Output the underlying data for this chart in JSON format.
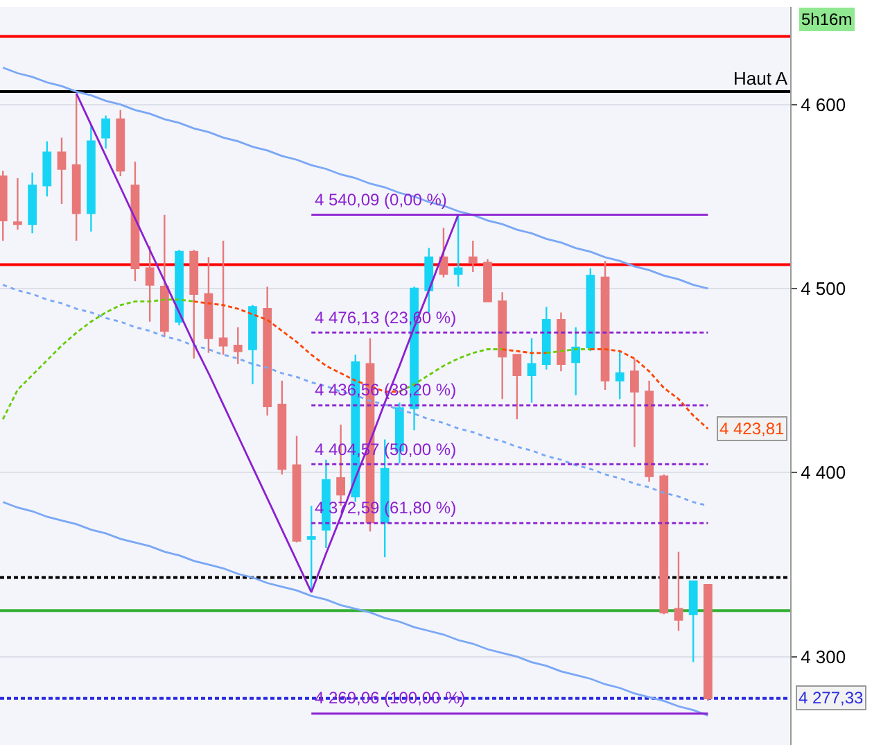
{
  "chart_data": {
    "type": "candlestick",
    "categories": [
      null,
      null,
      null,
      null,
      null,
      null,
      null,
      null,
      null,
      null,
      null,
      null,
      null,
      null,
      null,
      null,
      null,
      null,
      null,
      null,
      null,
      null,
      null,
      null,
      null,
      null,
      null,
      null,
      null,
      null,
      null,
      null,
      null,
      null,
      null,
      null,
      null,
      null,
      null,
      null,
      null,
      null,
      null,
      null,
      null,
      null,
      null,
      null,
      null
    ],
    "ylim": [
      4252,
      4653
    ],
    "yticks": [
      {
        "value": 4600,
        "label": "4 600"
      },
      {
        "value": 4500,
        "label": "4 500"
      },
      {
        "value": 4400,
        "label": "4 400"
      },
      {
        "value": 4300,
        "label": "4 300"
      }
    ],
    "tick_labels": "y",
    "grid": "y",
    "series": [
      {
        "type": "line",
        "color": "#7aa7f5",
        "line_style": "solid",
        "values": [
          4620,
          4617,
          4615,
          4612,
          4610,
          4607,
          4605,
          4602,
          4600,
          4597,
          4595,
          4592,
          4590,
          4587,
          4585,
          4582,
          4580,
          4577,
          4575,
          4572,
          4570,
          4567,
          4565,
          4562,
          4560,
          4557,
          4555,
          4552,
          4550,
          4547,
          4545,
          4542,
          4540,
          4537,
          4535,
          4532,
          4530,
          4527,
          4525,
          4522,
          4520,
          4517,
          4515,
          4512,
          4510,
          4507,
          4505,
          4502,
          4500
        ]
      },
      {
        "type": "line",
        "color": "#7aa7f5",
        "line_style": "solid",
        "values": [
          4384,
          4381,
          4379,
          4376,
          4374,
          4372,
          4369,
          4367,
          4364,
          4362,
          4360,
          4357,
          4355,
          4352,
          4350,
          4348,
          4345,
          4343,
          4340,
          4338,
          4336,
          4333,
          4331,
          4328,
          4326,
          4324,
          4321,
          4319,
          4316,
          4314,
          4312,
          4309,
          4307,
          4304,
          4302,
          4300,
          4297,
          4295,
          4292,
          4290,
          4288,
          4285,
          4283,
          4280,
          4278,
          4276,
          4273,
          4271,
          4268
        ]
      },
      {
        "type": "line",
        "color": "#7aa7f5",
        "line_style": "dotted",
        "values": [
          4502,
          4499,
          4497,
          4494,
          4492,
          4489,
          4487,
          4484,
          4482,
          4479,
          4477,
          4474,
          4472,
          4469,
          4467,
          4464,
          4462,
          4459,
          4457,
          4454,
          4452,
          4449,
          4447,
          4444,
          4442,
          4439,
          4437,
          4434,
          4432,
          4429,
          4427,
          4424,
          4422,
          4419,
          4417,
          4414,
          4412,
          4409,
          4407,
          4404,
          4402,
          4399,
          4397,
          4394,
          4392,
          4389,
          4387,
          4384,
          4382
        ]
      },
      {
        "type": "line",
        "color": "#66cc00",
        "line_style": "dashed",
        "values": [
          4429,
          4445,
          4453,
          4461,
          4469,
          4476,
          4482,
          4487,
          4491,
          4493,
          4493,
          4494,
          4494,
          4493,
          null,
          null,
          null,
          null,
          null,
          null,
          null,
          null,
          null,
          null,
          null,
          null,
          null,
          4444,
          4448,
          4453,
          4458,
          4462,
          4465,
          4467,
          4467,
          null,
          null,
          4465,
          4466,
          4467,
          4467,
          null,
          null,
          null,
          null,
          null,
          null,
          null,
          null
        ]
      },
      {
        "type": "line",
        "color": "#ff4500",
        "line_style": "dashed",
        "values": [
          null,
          null,
          null,
          null,
          null,
          null,
          null,
          null,
          null,
          null,
          null,
          null,
          null,
          4493,
          4492,
          4491,
          4489,
          4486,
          4483,
          4477,
          4471,
          4464,
          4458,
          4454,
          4450,
          4447,
          4444,
          4444,
          null,
          null,
          null,
          null,
          null,
          null,
          4467,
          4466,
          4465,
          4465,
          null,
          null,
          4467,
          4467,
          4466,
          4462,
          4455,
          4446,
          4440,
          4431,
          4423.81
        ],
        "value_labels": [
          null,
          null,
          null,
          null,
          null,
          null,
          null,
          null,
          null,
          null,
          null,
          null,
          null,
          null,
          null,
          null,
          null,
          null,
          null,
          null,
          null,
          null,
          null,
          null,
          null,
          null,
          null,
          null,
          null,
          null,
          null,
          null,
          null,
          null,
          null,
          null,
          null,
          null,
          null,
          null,
          null,
          null,
          null,
          null,
          null,
          null,
          null,
          null,
          "4 423,81"
        ]
      },
      {
        "type": "line",
        "color": "#8b1fd0",
        "line_style": "solid",
        "values": [
          null,
          null,
          null,
          null,
          null,
          null,
          null,
          null,
          null,
          null,
          null,
          null,
          null,
          null,
          null,
          null,
          null,
          null,
          null,
          null,
          null,
          4540.09,
          4540.09,
          4540.09,
          4540.09,
          4540.09,
          4540.09,
          4540.09,
          4540.09,
          4540.09,
          4540.09,
          4540.09,
          4540.09,
          4540.09,
          4540.09,
          4540.09,
          4540.09,
          4540.09,
          4540.09,
          4540.09,
          4540.09,
          4540.09,
          4540.09,
          4540.09,
          4540.09,
          4540.09,
          4540.09,
          4540.09,
          4540.09
        ]
      },
      {
        "type": "line",
        "color": "#8b1fd0",
        "line_style": "dashed",
        "values": [
          null,
          null,
          null,
          null,
          null,
          null,
          null,
          null,
          null,
          null,
          null,
          null,
          null,
          null,
          null,
          null,
          null,
          null,
          null,
          null,
          null,
          4476.13,
          4476.13,
          4476.13,
          4476.13,
          4476.13,
          4476.13,
          4476.13,
          4476.13,
          4476.13,
          4476.13,
          4476.13,
          4476.13,
          4476.13,
          4476.13,
          4476.13,
          4476.13,
          4476.13,
          4476.13,
          4476.13,
          4476.13,
          4476.13,
          4476.13,
          4476.13,
          4476.13,
          4476.13,
          4476.13,
          4476.13,
          4476.13
        ]
      },
      {
        "type": "line",
        "color": "#8b1fd0",
        "line_style": "dashed",
        "values": [
          null,
          null,
          null,
          null,
          null,
          null,
          null,
          null,
          null,
          null,
          null,
          null,
          null,
          null,
          null,
          null,
          null,
          null,
          null,
          null,
          null,
          4436.56,
          4436.56,
          4436.56,
          4436.56,
          4436.56,
          4436.56,
          4436.56,
          4436.56,
          4436.56,
          4436.56,
          4436.56,
          4436.56,
          4436.56,
          4436.56,
          4436.56,
          4436.56,
          4436.56,
          4436.56,
          4436.56,
          4436.56,
          4436.56,
          4436.56,
          4436.56,
          4436.56,
          4436.56,
          4436.56,
          4436.56,
          4436.56
        ]
      },
      {
        "type": "line",
        "color": "#8b1fd0",
        "line_style": "dashed",
        "values": [
          null,
          null,
          null,
          null,
          null,
          null,
          null,
          null,
          null,
          null,
          null,
          null,
          null,
          null,
          null,
          null,
          null,
          null,
          null,
          null,
          null,
          4404.57,
          4404.57,
          4404.57,
          4404.57,
          4404.57,
          4404.57,
          4404.57,
          4404.57,
          4404.57,
          4404.57,
          4404.57,
          4404.57,
          4404.57,
          4404.57,
          4404.57,
          4404.57,
          4404.57,
          4404.57,
          4404.57,
          4404.57,
          4404.57,
          4404.57,
          4404.57,
          4404.57,
          4404.57,
          4404.57,
          4404.57,
          4404.57
        ]
      },
      {
        "type": "line",
        "color": "#8b1fd0",
        "line_style": "dashed",
        "values": [
          null,
          null,
          null,
          null,
          null,
          null,
          null,
          null,
          null,
          null,
          null,
          null,
          null,
          null,
          null,
          null,
          null,
          null,
          null,
          null,
          null,
          4372.59,
          4372.59,
          4372.59,
          4372.59,
          4372.59,
          4372.59,
          4372.59,
          4372.59,
          4372.59,
          4372.59,
          4372.59,
          4372.59,
          4372.59,
          4372.59,
          4372.59,
          4372.59,
          4372.59,
          4372.59,
          4372.59,
          4372.59,
          4372.59,
          4372.59,
          4372.59,
          4372.59,
          4372.59,
          4372.59,
          4372.59,
          4372.59
        ]
      },
      {
        "type": "line",
        "color": "#8b1fd0",
        "line_style": "solid",
        "values": [
          null,
          null,
          null,
          null,
          null,
          null,
          null,
          null,
          null,
          null,
          null,
          null,
          null,
          null,
          null,
          null,
          null,
          null,
          null,
          null,
          null,
          4269.06,
          4269.06,
          4269.06,
          4269.06,
          4269.06,
          4269.06,
          4269.06,
          4269.06,
          4269.06,
          4269.06,
          4269.06,
          4269.06,
          4269.06,
          4269.06,
          4269.06,
          4269.06,
          4269.06,
          4269.06,
          4269.06,
          4269.06,
          4269.06,
          4269.06,
          4269.06,
          4269.06,
          4269.06,
          4269.06,
          4269.06,
          4269.06
        ]
      },
      {
        "type": "line",
        "color": "#8b1fd0",
        "line_style": "solid",
        "values": [
          null,
          null,
          null,
          null,
          null,
          4606,
          4589,
          4572,
          4555,
          4538,
          4521,
          4504,
          4487,
          4470,
          4454,
          4437,
          4420,
          4403,
          4386,
          4369,
          4352,
          4335,
          4356,
          4376,
          4397,
          4417,
          4438,
          4458,
          4479,
          4499,
          4520,
          4540.09,
          null,
          null,
          null,
          null,
          null,
          null,
          null,
          null,
          null,
          null,
          null,
          null,
          null,
          null,
          null,
          null,
          null
        ]
      },
      {
        "colors": [
          "#e87878",
          "#e87878",
          "#18d4f4",
          "#18d4f4",
          "#e87878",
          "#e87878",
          "#18d4f4",
          "#18d4f4",
          "#e87878",
          "#e87878",
          "#e87878",
          "#e87878",
          "#18d4f4",
          "#e87878",
          "#e87878",
          "#e87878",
          "#e87878",
          "#18d4f4",
          "#e87878",
          "#e87878",
          "#e87878",
          "#18d4f4",
          "#18d4f4",
          "#e87878",
          "#18d4f4",
          "#e87878",
          "#18d4f4",
          "#18d4f4",
          "#18d4f4",
          "#18d4f4",
          "#e87878",
          "#18d4f4",
          "#e87878",
          "#e87878",
          "#e87878",
          "#e87878",
          "#18d4f4",
          "#18d4f4",
          "#e87878",
          "#18d4f4",
          "#18d4f4",
          "#e87878",
          "#18d4f4",
          "#e87878",
          "#e87878",
          "#e87878",
          "#e87878",
          "#18d4f4",
          "#e87878"
        ],
        "ohlc": [
          [
            4561,
            4564,
            4526,
            4537
          ],
          [
            4536,
            4560,
            4532,
            4535
          ],
          [
            4535,
            4563,
            4530,
            4556
          ],
          [
            4556,
            4580,
            4550,
            4574
          ],
          [
            4574,
            4582,
            4546,
            4565
          ],
          [
            4567,
            4606,
            4526,
            4541
          ],
          [
            4541,
            4589,
            4531,
            4580
          ],
          [
            4582,
            4594,
            4576,
            4592
          ],
          [
            4592,
            4597,
            4561,
            4564
          ],
          [
            4556,
            4569,
            4504,
            4511
          ],
          [
            4511,
            4523,
            4482,
            4502
          ],
          [
            4501,
            4540,
            4474,
            4477
          ],
          [
            4482,
            4521,
            4480,
            4520
          ],
          [
            4520,
            4521,
            4462,
            4497
          ],
          [
            4497,
            4517,
            4465,
            4473
          ],
          [
            4473,
            4526,
            4464,
            4469
          ],
          [
            4469,
            4479,
            4459,
            4466
          ],
          [
            4467,
            4491,
            4448,
            4490
          ],
          [
            4489,
            4501,
            4431,
            4436
          ],
          [
            4437,
            4450,
            4399,
            4402
          ],
          [
            4404,
            4420,
            4362,
            4363
          ],
          [
            4364,
            4382,
            4335,
            4365
          ],
          [
            4369,
            4407,
            4359,
            4396
          ],
          [
            4397,
            4426,
            4382,
            4388
          ],
          [
            4387,
            4464,
            4384,
            4460
          ],
          [
            4459,
            4473,
            4368,
            4373
          ],
          [
            4373,
            4418,
            4354,
            4402
          ],
          [
            4412,
            4438,
            4405,
            4435
          ],
          [
            4435,
            4501,
            4423,
            4500
          ],
          [
            4499,
            4522,
            4487,
            4517
          ],
          [
            4517,
            4533,
            4506,
            4508
          ],
          [
            4508,
            4540.09,
            4501,
            4511
          ],
          [
            4517,
            4526,
            4509,
            4514
          ],
          [
            4514,
            4516,
            4493,
            4493
          ],
          [
            4493,
            4498,
            4440,
            4463
          ],
          [
            4464,
            4464,
            4429,
            4453
          ],
          [
            4453,
            4473,
            4438,
            4459
          ],
          [
            4459,
            4490,
            4456,
            4483
          ],
          [
            4483,
            4487,
            4455,
            4459
          ],
          [
            4460,
            4479,
            4442,
            4468
          ],
          [
            4468,
            4511,
            4466,
            4507
          ],
          [
            4506,
            4515,
            4445,
            4450
          ],
          [
            4450,
            4466,
            4440,
            4454
          ],
          [
            4455,
            4462,
            4414,
            4444
          ],
          [
            4444,
            4450,
            4395,
            4398
          ],
          [
            4398,
            4399,
            4323,
            4324
          ],
          [
            4326,
            4357,
            4314,
            4320
          ],
          [
            4323,
            4341,
            4297,
            4341
          ],
          [
            4339,
            4339,
            4276,
            4277.33
          ]
        ],
        "value_labels": [
          null,
          null,
          null,
          null,
          null,
          null,
          null,
          null,
          null,
          null,
          null,
          null,
          null,
          null,
          null,
          null,
          null,
          null,
          null,
          null,
          null,
          null,
          null,
          null,
          null,
          null,
          null,
          null,
          null,
          null,
          null,
          null,
          null,
          null,
          null,
          null,
          null,
          null,
          null,
          null,
          null,
          null,
          null,
          null,
          null,
          null,
          null,
          null,
          "4 277,33"
        ]
      }
    ],
    "ref_lines": [
      {
        "axis": "y",
        "value": 4637,
        "color": "#ff0000",
        "line_style": "solid"
      },
      {
        "axis": "y",
        "value": 4607,
        "color": "#000000",
        "line_style": "solid",
        "label": "Haut A"
      },
      {
        "axis": "y",
        "value": 4513,
        "color": "#ff0000",
        "line_style": "solid"
      },
      {
        "axis": "y",
        "value": 4343,
        "color": "#000000",
        "line_style": "dashed"
      },
      {
        "axis": "y",
        "value": 4325,
        "color": "#33b033",
        "line_style": "solid"
      },
      {
        "axis": "y",
        "value": 4277.33,
        "color": "#2a2ae0",
        "line_style": "dashed"
      }
    ],
    "annotations": [
      "5h16m",
      {
        "text": "4 540,09 (0,00 %)",
        "y": 4540.09
      },
      {
        "text": "4 476,13 (23,60 %)",
        "y": 4476.13
      },
      {
        "text": "4 436,56 (38,20 %)",
        "y": 4436.56
      },
      {
        "text": "4 404,57 (50,00 %)",
        "y": 4404.57
      },
      {
        "text": "4 372,59 (61,80 %)",
        "y": 4372.59
      },
      {
        "text": "4 269,06 (100,00 %)",
        "y": 4269.06
      }
    ]
  }
}
